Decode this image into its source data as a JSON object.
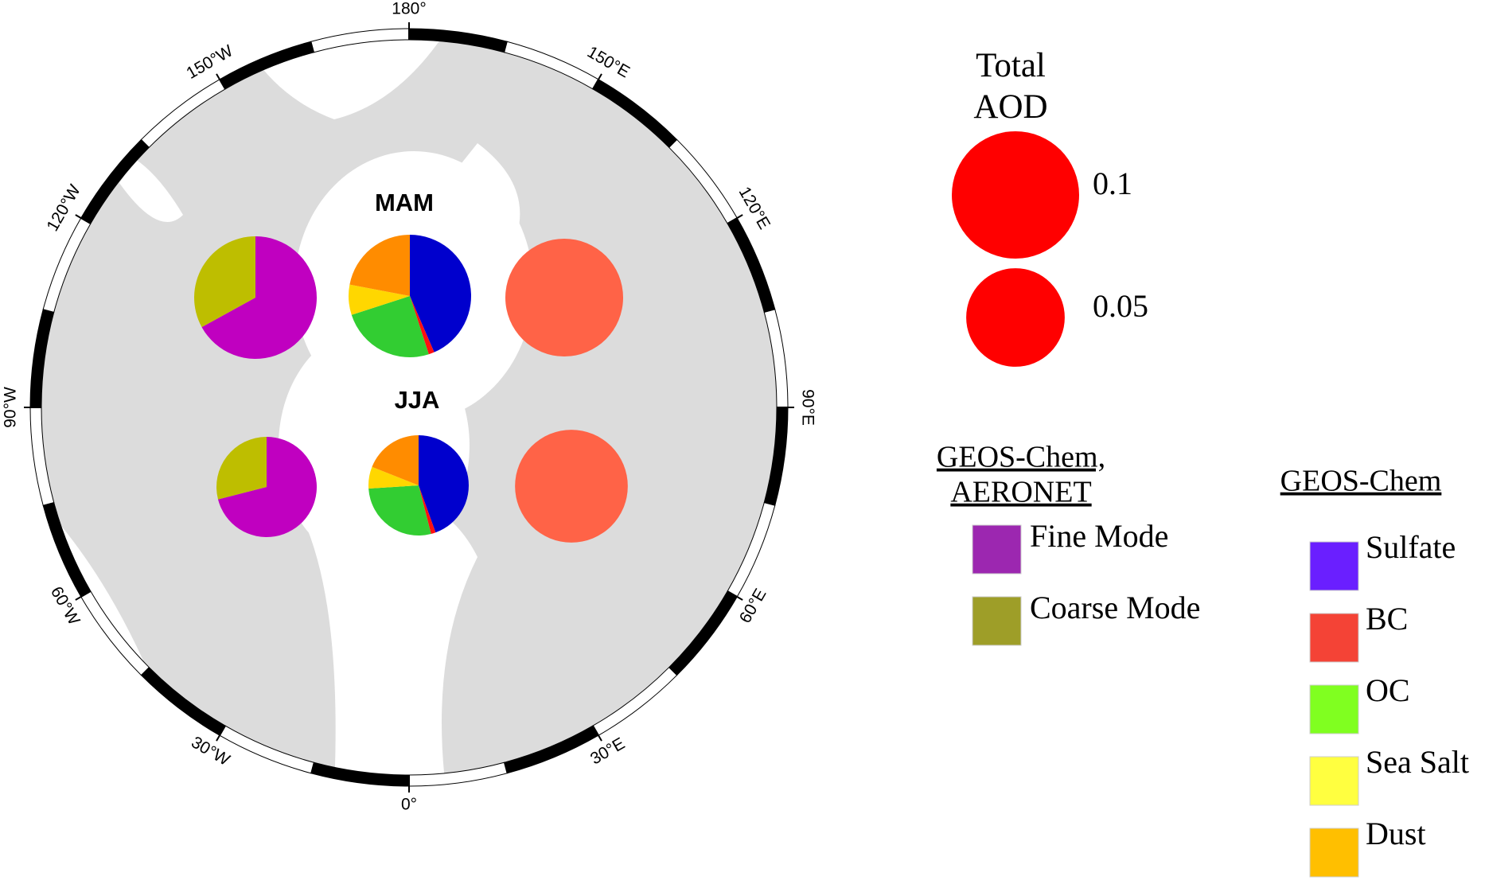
{
  "map": {
    "type": "polar-pie-map",
    "longitude_ticks": [
      {
        "value": 180,
        "label": "180°"
      },
      {
        "value": 150,
        "label": "150°E"
      },
      {
        "value": 120,
        "label": "120°E"
      },
      {
        "value": 90,
        "label": "90°E"
      },
      {
        "value": 60,
        "label": "60°E"
      },
      {
        "value": 30,
        "label": "30°E"
      },
      {
        "value": 0,
        "label": "0°"
      },
      {
        "value": -30,
        "label": "30°W"
      },
      {
        "value": -60,
        "label": "60°W"
      },
      {
        "value": -90,
        "label": "90°W"
      },
      {
        "value": -120,
        "label": "120°W"
      },
      {
        "value": -150,
        "label": "150°W"
      }
    ],
    "seasons": [
      {
        "label": "MAM",
        "mode_fractions": [
          67,
          33
        ],
        "species_fractions": [
          43.5,
          1.5,
          25,
          8,
          22
        ],
        "total_aod": 0.081
      },
      {
        "label": "JJA",
        "mode_fractions": [
          71,
          29
        ],
        "species_fractions": [
          44.5,
          1.5,
          28,
          7,
          19
        ],
        "total_aod": 0.072
      }
    ],
    "mode_pie_colors": [
      "#c000c0",
      "#bebe00"
    ],
    "species_pie_colors": [
      "#0000cd",
      "#ff1010",
      "#32cd32",
      "#ffd700",
      "#ff8c00"
    ],
    "total_aod_color": "#ff6347"
  },
  "legend": {
    "size_title": [
      "Total",
      "AOD"
    ],
    "size_items": [
      {
        "value": 0.1,
        "label": "0.1"
      },
      {
        "value": 0.05,
        "label": "0.05"
      }
    ],
    "size_color": "#ff0000",
    "mode_title": [
      "GEOS-Chem,",
      "AERONET"
    ],
    "mode_items": [
      {
        "label": "Fine Mode",
        "color": "#9c27b0"
      },
      {
        "label": "Coarse Mode",
        "color": "#9e9e28"
      }
    ],
    "species_title": "GEOS-Chem",
    "species_items": [
      {
        "label": "Sulfate",
        "color": "#6a1fff"
      },
      {
        "label": "BC",
        "color": "#f44336"
      },
      {
        "label": "OC",
        "color": "#80ff20"
      },
      {
        "label": "Sea Salt",
        "color": "#ffff40"
      },
      {
        "label": "Dust",
        "color": "#ffbf00"
      }
    ]
  }
}
